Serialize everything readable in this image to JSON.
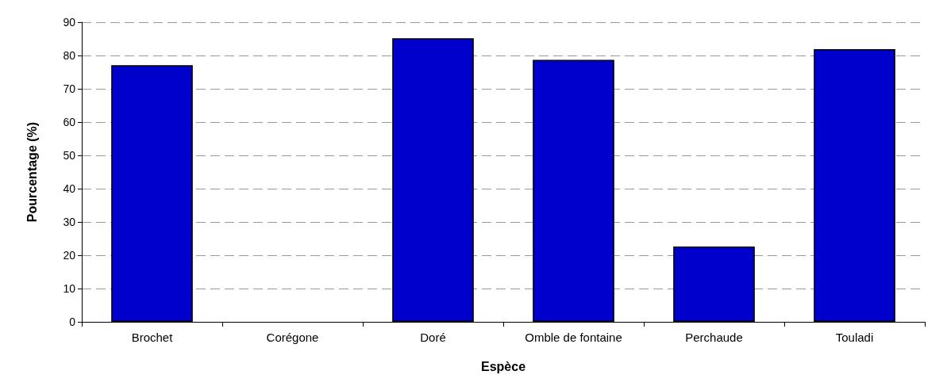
{
  "chart_data": {
    "type": "bar",
    "xlabel": "Espèce",
    "ylabel": "Pourcentage (%)",
    "categories": [
      "Brochet",
      "Corégone",
      "Doré",
      "Omble de fontaine",
      "Perchaude",
      "Touladi"
    ],
    "values": [
      77.1,
      0,
      85.2,
      78.7,
      22.6,
      81.9
    ],
    "color": "#0000cc",
    "ylim": [
      0,
      90
    ],
    "yticks": [
      0,
      10,
      20,
      30,
      40,
      50,
      60,
      70,
      80,
      90
    ],
    "grid": "y"
  }
}
